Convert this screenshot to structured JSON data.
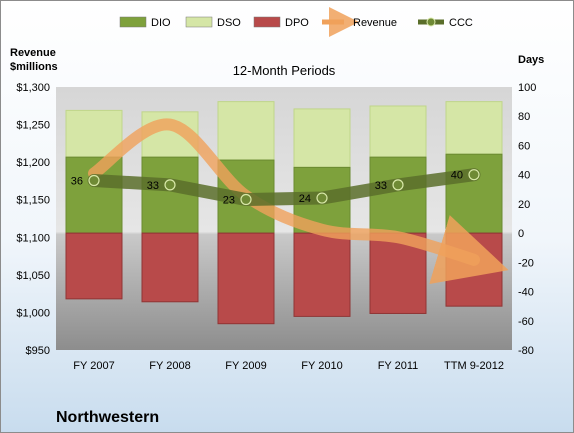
{
  "chart_data": {
    "type": "bar",
    "title": "12-Month Periods",
    "company": "Northwestern",
    "categories": [
      "FY 2007",
      "FY 2008",
      "FY 2009",
      "FY 2010",
      "FY 2011",
      "TTM 9-2012"
    ],
    "left_axis": {
      "label_line1": "Revenue",
      "label_line2": "$millions",
      "min": 950,
      "max": 1300,
      "step": 50,
      "ticks": [
        "$950",
        "$1,000",
        "$1,050",
        "$1,100",
        "$1,150",
        "$1,200",
        "$1,250",
        "$1,300"
      ]
    },
    "right_axis": {
      "label": "Days",
      "min": -80,
      "max": 100,
      "step": 20,
      "ticks": [
        "-80",
        "-60",
        "-40",
        "-20",
        "0",
        "20",
        "40",
        "60",
        "80",
        "100"
      ]
    },
    "series": [
      {
        "name": "DIO",
        "axis": "days",
        "color": "#7ea13c",
        "values": [
          52,
          52,
          50,
          45,
          52,
          54
        ]
      },
      {
        "name": "DSO",
        "axis": "days",
        "color": "#d5e6a6",
        "values": [
          32,
          31,
          40,
          40,
          35,
          36
        ]
      },
      {
        "name": "DPO",
        "axis": "days",
        "color": "#b84a4a",
        "values": [
          -45,
          -47,
          -62,
          -57,
          -55,
          -50
        ]
      },
      {
        "name": "Revenue",
        "axis": "revenue",
        "color": "#f0a15b",
        "values": [
          1185,
          1250,
          1155,
          1110,
          1100,
          1070
        ]
      },
      {
        "name": "CCC",
        "axis": "days",
        "color": "#5a6e2a",
        "values": [
          36,
          33,
          23,
          24,
          33,
          40
        ]
      }
    ],
    "ccc_labels": [
      "36",
      "33",
      "23",
      "24",
      "33",
      "40"
    ],
    "legend": "top",
    "grid": false
  }
}
